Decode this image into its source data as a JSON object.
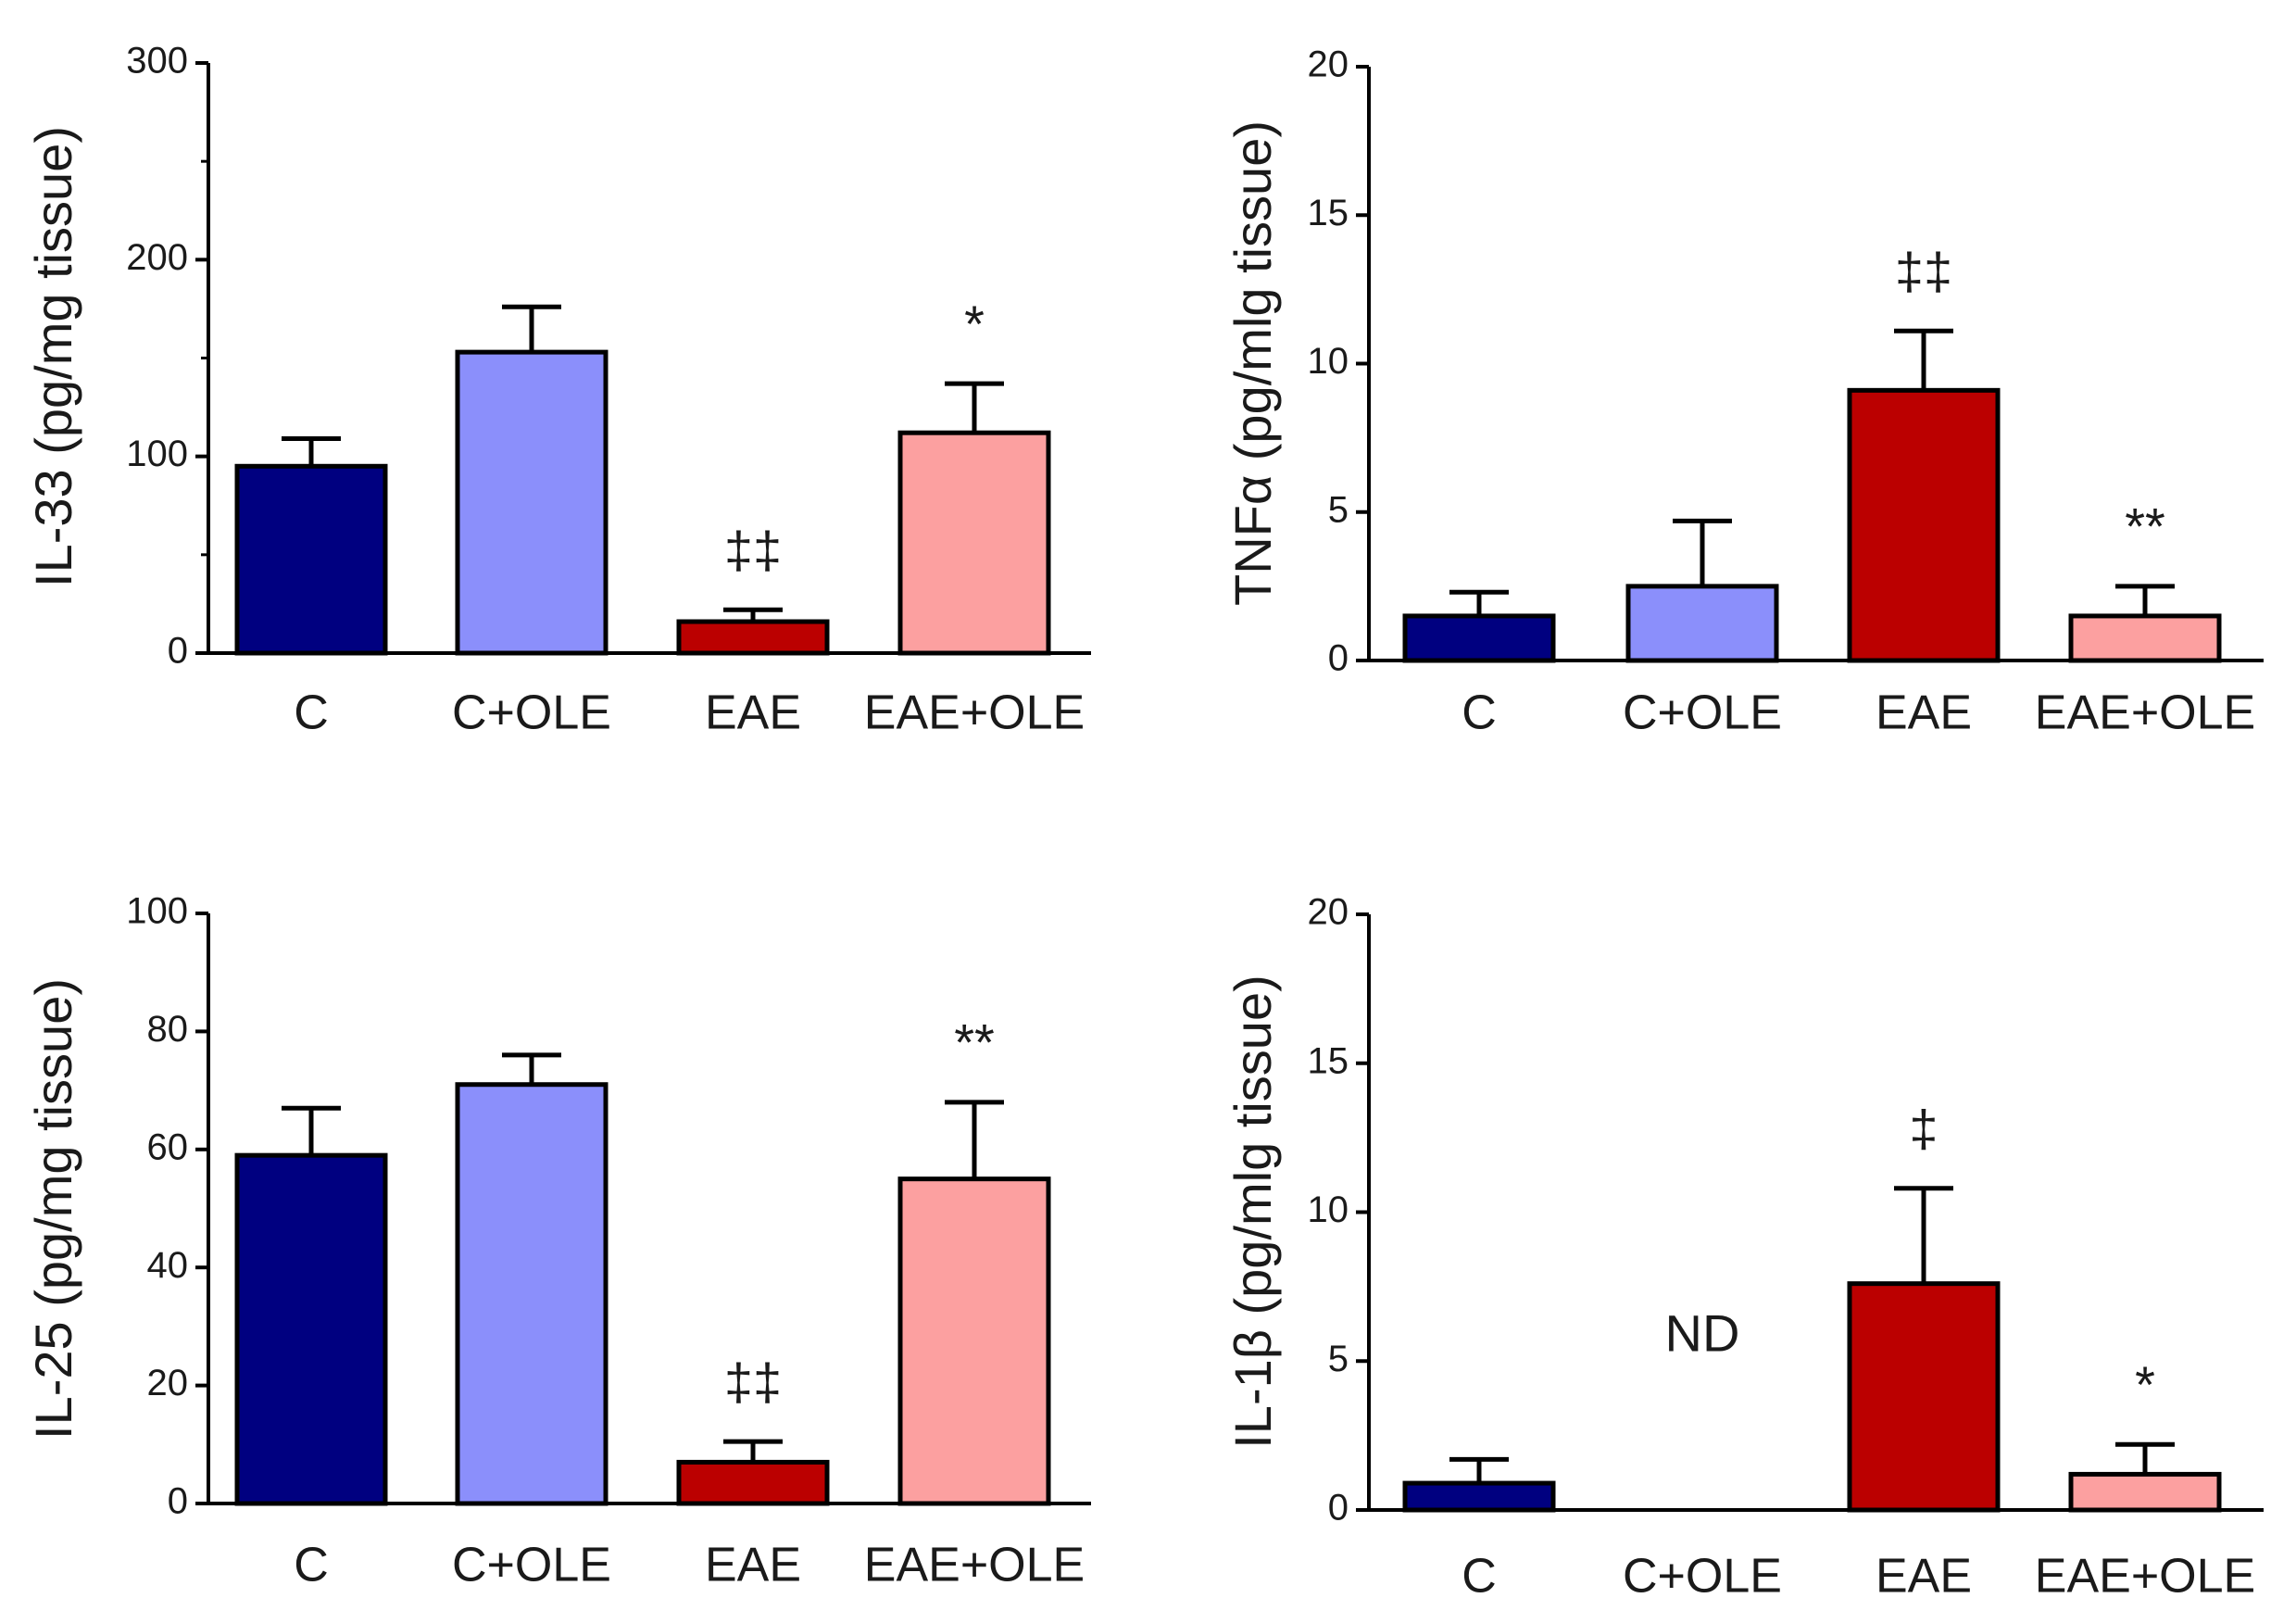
{
  "colors": {
    "C": "#000080",
    "C+OLE": "#8b8ffb",
    "EAE": "#bb0000",
    "EAE+OLE": "#fca0a0",
    "axis": "#000000"
  },
  "chart_data": [
    {
      "id": "il33",
      "type": "bar",
      "title": "",
      "xlabel": "",
      "ylabel": "IL-33 (pg/mg tissue)",
      "categories": [
        "C",
        "C+OLE",
        "EAE",
        "EAE+OLE"
      ],
      "values": [
        95,
        153,
        16,
        112
      ],
      "errors": [
        14,
        23,
        6,
        25
      ],
      "ylim": [
        0,
        300
      ],
      "yticks": [
        0,
        100,
        200,
        300
      ],
      "yticks_minor": [
        50,
        150,
        250
      ],
      "annotations": [
        "",
        "",
        "‡‡",
        "*"
      ]
    },
    {
      "id": "tnfa",
      "type": "bar",
      "title": "",
      "xlabel": "",
      "ylabel": "TNFα (pg/mlg tissue)",
      "categories": [
        "C",
        "C+OLE",
        "EAE",
        "EAE+OLE"
      ],
      "values": [
        1.5,
        2.5,
        9.1,
        1.5
      ],
      "errors": [
        0.8,
        2.2,
        2.0,
        1.0
      ],
      "ylim": [
        0,
        20
      ],
      "yticks": [
        0,
        5,
        10,
        15,
        20
      ],
      "yticks_minor": [],
      "annotations": [
        "",
        "",
        "‡‡",
        "**"
      ]
    },
    {
      "id": "il25",
      "type": "bar",
      "title": "",
      "xlabel": "",
      "ylabel": "IL-25 (pg/mg tissue)",
      "categories": [
        "C",
        "C+OLE",
        "EAE",
        "EAE+OLE"
      ],
      "values": [
        59,
        71,
        7,
        55
      ],
      "errors": [
        8,
        5,
        3.5,
        13
      ],
      "ylim": [
        0,
        100
      ],
      "yticks": [
        0,
        20,
        40,
        60,
        80,
        100
      ],
      "yticks_minor": [],
      "annotations": [
        "",
        "",
        "‡‡",
        "**"
      ]
    },
    {
      "id": "il1b",
      "type": "bar",
      "title": "",
      "xlabel": "",
      "ylabel": "IL-1β (pg/mlg tissue)",
      "categories": [
        "C",
        "C+OLE",
        "EAE",
        "EAE+OLE"
      ],
      "values": [
        0.9,
        null,
        7.6,
        1.2
      ],
      "errors": [
        0.8,
        null,
        3.2,
        1.0
      ],
      "ylim": [
        0,
        20
      ],
      "yticks": [
        0,
        5,
        10,
        15,
        20
      ],
      "yticks_minor": [],
      "annotations": [
        "",
        "ND",
        "‡",
        "*"
      ]
    }
  ]
}
